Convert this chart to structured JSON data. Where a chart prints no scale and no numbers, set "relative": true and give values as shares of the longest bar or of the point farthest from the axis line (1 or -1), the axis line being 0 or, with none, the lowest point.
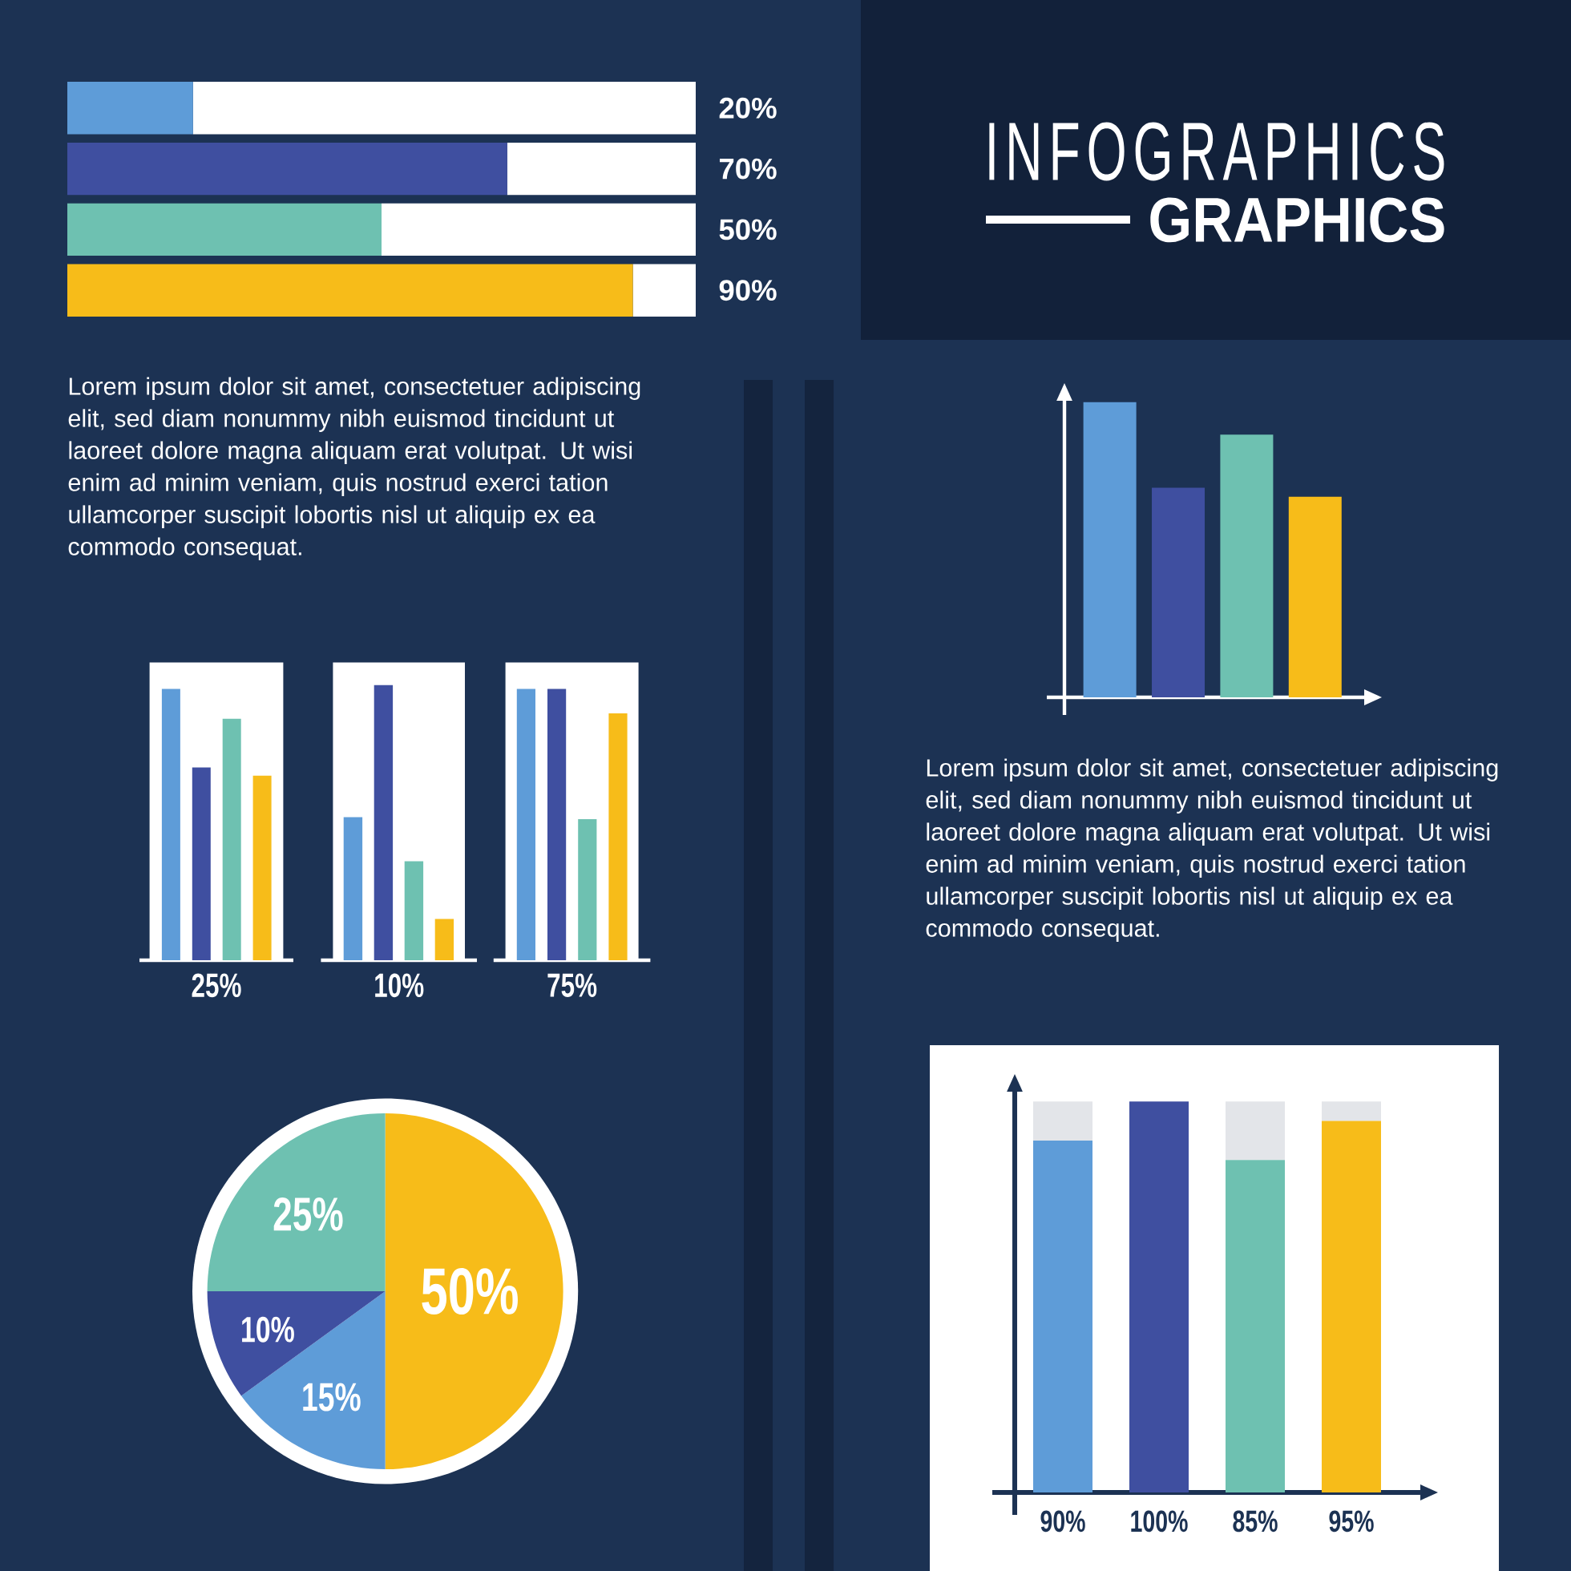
{
  "chart_data": [
    {
      "type": "bar",
      "orientation": "horizontal",
      "stacked": true,
      "categories": [
        null,
        null,
        null,
        null
      ],
      "series": [
        {
          "colors": [
            "#5e9cd8",
            "#3f4fa0",
            "#6ec1b1",
            "#f7bc19"
          ],
          "values": [
            20,
            70,
            50,
            90
          ],
          "value_labels": [
            "20%",
            "70%",
            "50%",
            "90%"
          ]
        },
        {
          "color": "#ffffff",
          "values": [
            80,
            30,
            50,
            10
          ]
        }
      ],
      "xlim": [
        0,
        100
      ],
      "tick_labels": false
    },
    {
      "type": "other",
      "title": "INFOGRAPHICS",
      "subtitle": "GRAPHICS",
      "annotations": [
        "Lorem ipsum dolor sit amet, consectetuer adipiscing elit, sed diam nonummy nibh euismod tincidunt ut laoreet dolore magna aliquam erat volutpat. Ut wisi enim ad minim veniam, quis nostrud exerci tation ullamcorper suscipit lobortis nisl ut aliquip ex ea commodo consequat.",
        "Lorem ipsum dolor sit amet, consectetuer adipiscing elit, sed diam nonummy nibh euismod tincidunt ut laoreet dolore magna aliquam erat volutpat. Ut wisi enim ad minim veniam, quis nostrud exerci tation ullamcorper suscipit lobortis nisl ut aliquip ex ea commodo consequat."
      ]
    },
    {
      "type": "bar",
      "relative": true,
      "categories": [
        null,
        null,
        null,
        null
      ],
      "values": [
        1,
        0.71,
        0.89,
        0.68
      ],
      "colors": [
        "#5e9cd8",
        "#3f4fa0",
        "#6ec1b1",
        "#f7bc19"
      ]
    },
    {
      "type": "bar",
      "relative": true,
      "xlabel": "25%",
      "categories": [
        null,
        null,
        null,
        null
      ],
      "values": [
        1,
        0.71,
        0.89,
        0.68
      ],
      "colors": [
        "#5e9cd8",
        "#3f4fa0",
        "#6ec1b1",
        "#f7bc19"
      ]
    },
    {
      "type": "bar",
      "relative": true,
      "xlabel": "10%",
      "categories": [
        null,
        null,
        null,
        null
      ],
      "values": [
        0.52,
        1,
        0.36,
        0.15
      ],
      "colors": [
        "#5e9cd8",
        "#3f4fa0",
        "#6ec1b1",
        "#f7bc19"
      ]
    },
    {
      "type": "bar",
      "relative": true,
      "xlabel": "75%",
      "categories": [
        null,
        null,
        null,
        null
      ],
      "values": [
        1,
        1,
        0.52,
        0.91
      ],
      "colors": [
        "#5e9cd8",
        "#3f4fa0",
        "#6ec1b1",
        "#f7bc19"
      ]
    },
    {
      "type": "pie",
      "categories": [
        null,
        null,
        null,
        null
      ],
      "values": [
        50,
        15,
        10,
        25
      ],
      "colors": [
        "#f7bc19",
        "#5e9cd8",
        "#3f4fa0",
        "#6ec1b1"
      ],
      "value_labels": [
        "50%",
        "15%",
        "10%",
        "25%"
      ]
    },
    {
      "type": "bar",
      "stacked": true,
      "categories": [
        null,
        null,
        null,
        null
      ],
      "series": [
        {
          "colors": [
            "#5e9cd8",
            "#3f4fa0",
            "#6ec1b1",
            "#f7bc19"
          ],
          "values": [
            90,
            100,
            85,
            95
          ],
          "value_labels": [
            "90%",
            "100%",
            "85%",
            "95%"
          ]
        },
        {
          "color": "#e3e5e9",
          "values": [
            10,
            0,
            15,
            5
          ]
        }
      ],
      "tick_labels": false
    }
  ]
}
